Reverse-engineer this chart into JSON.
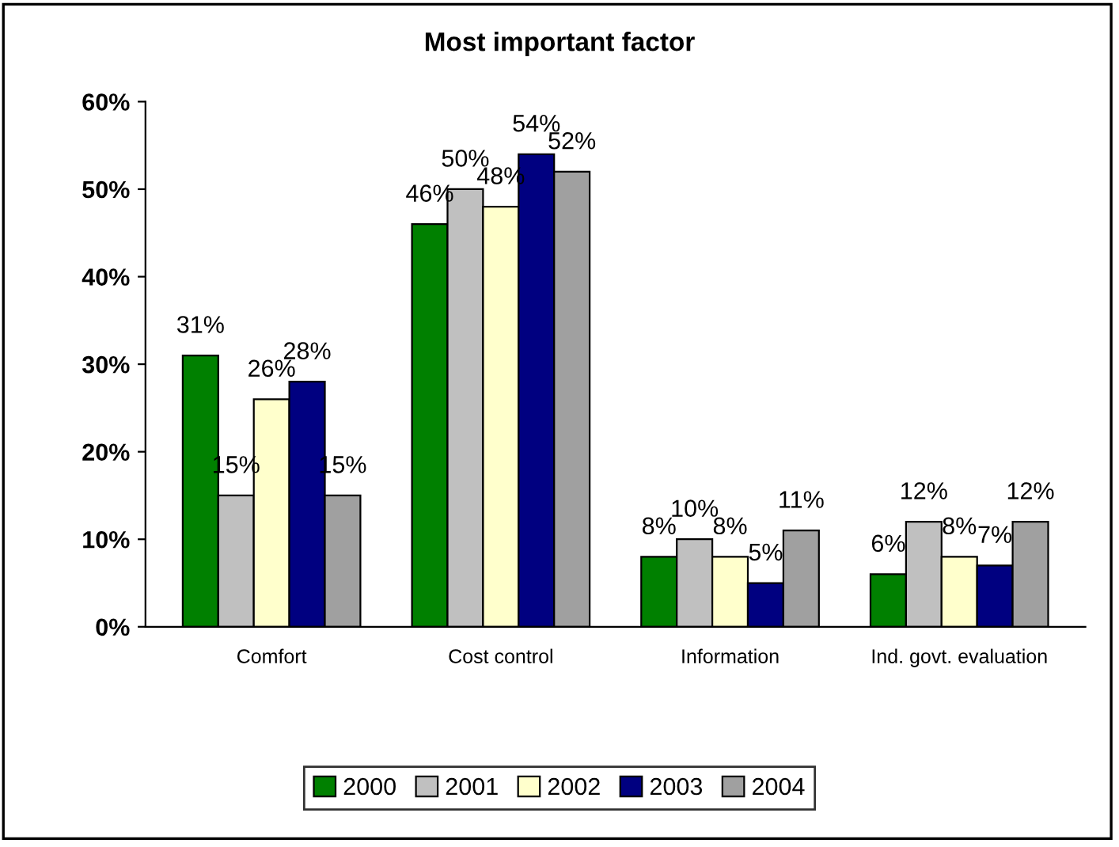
{
  "chart_data": {
    "type": "bar",
    "title": "Most important factor",
    "categories": [
      "Comfort",
      "Cost control",
      "Information",
      "Ind. govt. evaluation"
    ],
    "series": [
      {
        "name": "2000",
        "color": "#008000",
        "values": [
          31,
          46,
          8,
          6
        ],
        "value_labels": [
          "31%",
          "46%",
          "8%",
          "6%"
        ]
      },
      {
        "name": "2001",
        "color": "#c0c0c0",
        "values": [
          15,
          50,
          10,
          12
        ],
        "value_labels": [
          "15%",
          "50%",
          "10%",
          "12%"
        ]
      },
      {
        "name": "2002",
        "color": "#ffffcc",
        "values": [
          26,
          48,
          8,
          8
        ],
        "value_labels": [
          "26%",
          "48%",
          "8%",
          "8%"
        ]
      },
      {
        "name": "2003",
        "color": "#000080",
        "values": [
          28,
          54,
          5,
          7
        ],
        "value_labels": [
          "28%",
          "54%",
          "5%",
          "7%"
        ]
      },
      {
        "name": "2004",
        "color": "#a0a0a0",
        "values": [
          15,
          52,
          11,
          12
        ],
        "value_labels": [
          "15%",
          "52%",
          "11%",
          "12%"
        ]
      }
    ],
    "ylim": [
      0,
      60
    ],
    "yticks": [
      {
        "value": 0,
        "label": "0%"
      },
      {
        "value": 10,
        "label": "10%"
      },
      {
        "value": 20,
        "label": "20%"
      },
      {
        "value": 30,
        "label": "30%"
      },
      {
        "value": 40,
        "label": "40%"
      },
      {
        "value": 50,
        "label": "50%"
      },
      {
        "value": 60,
        "label": "60%"
      }
    ],
    "grid": false,
    "legend": "bottom"
  }
}
